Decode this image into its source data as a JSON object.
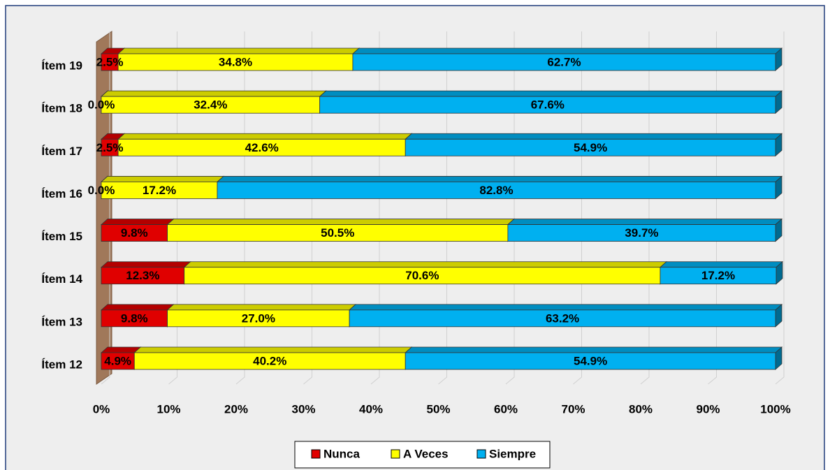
{
  "chart_data": {
    "type": "bar",
    "orientation": "horizontal",
    "stacked": true,
    "categories": [
      "Ítem 12",
      "Ítem 13",
      "Ítem 14",
      "Ítem 15",
      "Ítem 16",
      "Ítem 17",
      "Ítem 18",
      "Ítem 19"
    ],
    "series": [
      {
        "name": "Nunca",
        "color": "#e00000",
        "values": [
          4.9,
          9.8,
          12.3,
          9.8,
          0,
          2.5,
          0,
          2.5
        ],
        "value_labels": [
          "4.9%",
          "9.8%",
          "12.3%",
          "9.8%",
          "0.0%",
          "2.5%",
          "0.0%",
          "2.5%"
        ]
      },
      {
        "name": "A Veces",
        "color": "#ffff00",
        "values": [
          40.2,
          27.0,
          70.6,
          50.5,
          17.2,
          42.6,
          32.4,
          34.8
        ],
        "value_labels": [
          "40.2%",
          "27.0%",
          "70.6%",
          "50.5%",
          "17.2%",
          "42.6%",
          "32.4%",
          "34.8%"
        ]
      },
      {
        "name": "Siempre",
        "color": "#00b0f0",
        "values": [
          54.9,
          63.2,
          17.2,
          39.7,
          82.8,
          54.9,
          67.6,
          62.7
        ],
        "value_labels": [
          "54.9%",
          "63.2%",
          "17.2%",
          "39.7%",
          "82.8%",
          "54.9%",
          "67.6%",
          "62.7%"
        ]
      }
    ],
    "xlim": [
      0,
      100
    ],
    "xticks": [
      {
        "value": 0,
        "label": "0%"
      },
      {
        "value": 10,
        "label": "10%"
      },
      {
        "value": 20,
        "label": "20%"
      },
      {
        "value": 30,
        "label": "30%"
      },
      {
        "value": 40,
        "label": "40%"
      },
      {
        "value": 50,
        "label": "50%"
      },
      {
        "value": 60,
        "label": "60%"
      },
      {
        "value": 70,
        "label": "70%"
      },
      {
        "value": 80,
        "label": "80%"
      },
      {
        "value": 90,
        "label": "90%"
      },
      {
        "value": 100,
        "label": "100%"
      }
    ],
    "grid": true,
    "legend": "bottom"
  }
}
